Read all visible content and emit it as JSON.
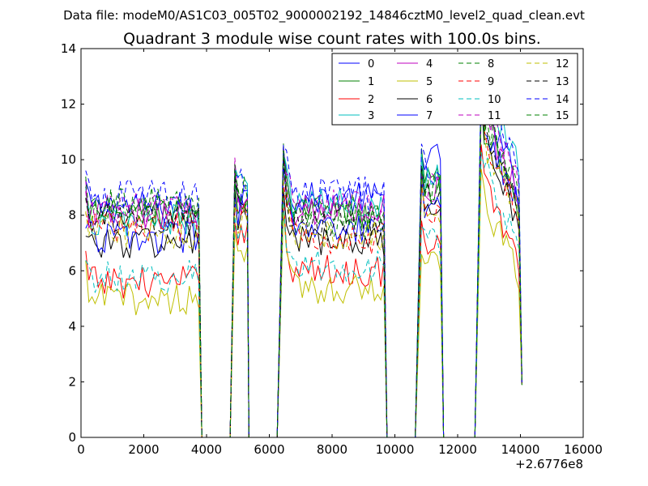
{
  "chart_data": {
    "type": "line",
    "suptitle": "Data file: modeM0/AS1C03_005T02_9000002192_14846cztM0_level2_quad_clean.evt",
    "title": "Quadrant 3 module wise count rates with 100.0s bins.",
    "xlabel": "",
    "ylabel": "",
    "x_offset_label": "+2.6776e8",
    "xlim": [
      0,
      16000
    ],
    "ylim": [
      0,
      14
    ],
    "xticks": [
      0,
      2000,
      4000,
      6000,
      8000,
      10000,
      12000,
      14000,
      16000
    ],
    "yticks": [
      0,
      2,
      4,
      6,
      8,
      10,
      12,
      14
    ],
    "grid": false,
    "legend_position": "top-right",
    "legend_columns": 4,
    "segments": [
      {
        "x_start": 150,
        "x_end": 3750,
        "step": 100
      },
      {
        "x_start": 4900,
        "x_end": 5250,
        "step": 100
      },
      {
        "x_start": 6450,
        "x_end": 9650,
        "step": 100
      },
      {
        "x_start": 10850,
        "x_end": 11450,
        "step": 100
      },
      {
        "x_start": 12750,
        "x_end": 13950,
        "step": 100
      }
    ],
    "x_gap_edges": [
      3850,
      3950,
      4750,
      4850,
      5350,
      5450,
      6250,
      6350,
      9750,
      9850,
      10650,
      10750,
      11550,
      11650,
      12550,
      12650,
      14050
    ],
    "end_values": {
      "x": 14050,
      "min": 1.4,
      "max": 2.4
    },
    "series": [
      {
        "name": "0",
        "color": "#0000ff",
        "dash": "solid",
        "levels": [
          8.3,
          8.8,
          8.6,
          10.0,
          9.6
        ]
      },
      {
        "name": "1",
        "color": "#008000",
        "dash": "solid",
        "levels": [
          8.0,
          8.4,
          8.0,
          9.2,
          8.9
        ]
      },
      {
        "name": "2",
        "color": "#ff0000",
        "dash": "solid",
        "levels": [
          5.6,
          7.5,
          6.0,
          6.8,
          7.0
        ]
      },
      {
        "name": "3",
        "color": "#00bfbf",
        "dash": "solid",
        "levels": [
          7.8,
          9.0,
          8.4,
          9.4,
          10.4
        ]
      },
      {
        "name": "4",
        "color": "#bf00bf",
        "dash": "solid",
        "levels": [
          8.0,
          8.5,
          8.2,
          9.0,
          9.4
        ]
      },
      {
        "name": "5",
        "color": "#bfbf00",
        "dash": "solid",
        "levels": [
          5.0,
          6.8,
          5.4,
          6.2,
          6.3
        ]
      },
      {
        "name": "6",
        "color": "#000000",
        "dash": "solid",
        "levels": [
          7.0,
          7.8,
          7.0,
          7.8,
          8.4
        ]
      },
      {
        "name": "7",
        "color": "#0000ff",
        "dash": "solid",
        "levels": [
          7.2,
          8.2,
          7.4,
          8.4,
          9.0
        ]
      },
      {
        "name": "8",
        "color": "#008000",
        "dash": "dashed",
        "levels": [
          8.2,
          8.6,
          7.8,
          8.8,
          9.3
        ]
      },
      {
        "name": "9",
        "color": "#ff0000",
        "dash": "dashed",
        "levels": [
          7.6,
          8.0,
          7.2,
          8.2,
          8.6
        ]
      },
      {
        "name": "10",
        "color": "#00bfbf",
        "dash": "dashed",
        "levels": [
          5.8,
          7.2,
          6.2,
          7.0,
          7.6
        ]
      },
      {
        "name": "11",
        "color": "#bf00bf",
        "dash": "dashed",
        "levels": [
          8.2,
          8.8,
          8.4,
          9.2,
          9.8
        ]
      },
      {
        "name": "12",
        "color": "#bfbf00",
        "dash": "dashed",
        "levels": [
          7.4,
          7.9,
          7.3,
          8.0,
          8.5
        ]
      },
      {
        "name": "13",
        "color": "#000000",
        "dash": "dashed",
        "levels": [
          7.8,
          8.3,
          7.6,
          8.6,
          9.0
        ]
      },
      {
        "name": "14",
        "color": "#0000ff",
        "dash": "dashed",
        "levels": [
          8.7,
          9.2,
          8.8,
          9.6,
          10.2
        ]
      },
      {
        "name": "15",
        "color": "#008000",
        "dash": "dashed",
        "levels": [
          8.4,
          8.9,
          8.2,
          9.0,
          9.4
        ]
      }
    ]
  }
}
